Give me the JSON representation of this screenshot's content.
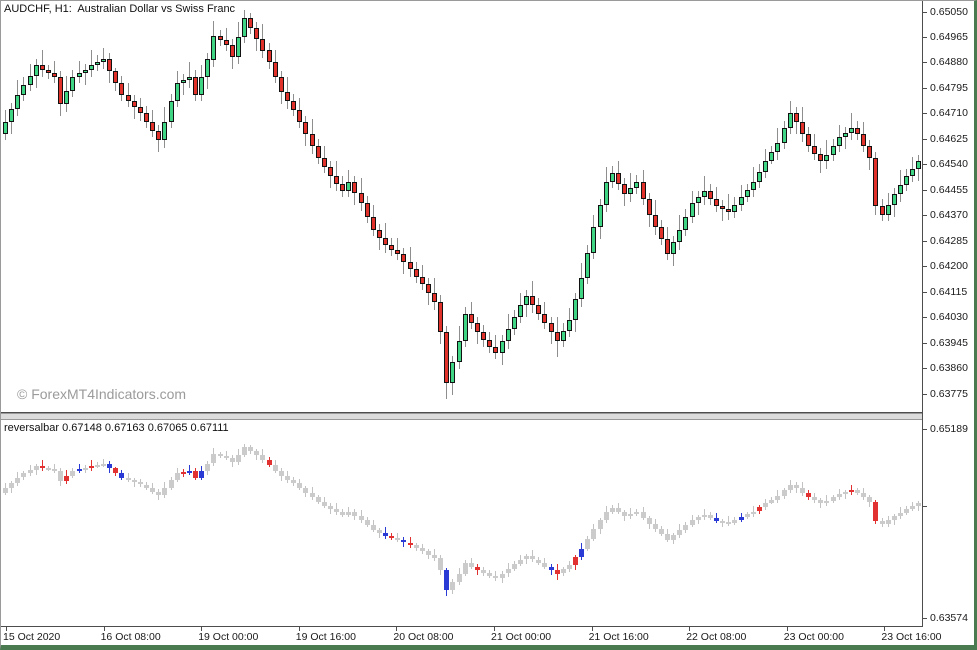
{
  "header": {
    "title": "AUDCHF, H1:  Australian Dollar vs Swiss Franc"
  },
  "watermark": {
    "text": "© ForexMT4Indicators.com"
  },
  "indicator": {
    "label": "reversalbar 0.67148 0.67163 0.67065 0.67111",
    "name": "reversalbar",
    "values": [
      "0.67148",
      "0.67163",
      "0.67065",
      "0.67111"
    ]
  },
  "price_axis_top": {
    "labels": [
      "0.65050",
      "0.64965",
      "0.64880",
      "0.64795",
      "0.64710",
      "0.64625",
      "0.64540",
      "0.64455",
      "0.64370",
      "0.64285",
      "0.64200",
      "0.64115",
      "0.64030",
      "0.63945",
      "0.63860",
      "0.63775"
    ]
  },
  "price_axis_bottom": {
    "labels": [
      "0.65189",
      "0.63574"
    ]
  },
  "time_axis": {
    "labels": [
      "15 Oct 2020",
      "16 Oct 08:00",
      "19 Oct 00:00",
      "19 Oct 16:00",
      "20 Oct 08:00",
      "21 Oct 00:00",
      "21 Oct 16:00",
      "22 Oct 08:00",
      "23 Oct 00:00",
      "23 Oct 16:00"
    ]
  },
  "chart_data": {
    "type": "candlestick",
    "symbol": "AUDCHF",
    "timeframe": "H1",
    "title": "AUDCHF, H1:  Australian Dollar vs Swiss Franc",
    "panels": [
      "price",
      "reversalbar indicator"
    ],
    "top_ylim": [
      0.63712,
      0.65083
    ],
    "bottom_ylim": [
      0.63462,
      0.65266
    ],
    "x_tick_labels": [
      "15 Oct 2020",
      "16 Oct 08:00",
      "19 Oct 00:00",
      "19 Oct 16:00",
      "20 Oct 08:00",
      "21 Oct 00:00",
      "21 Oct 16:00",
      "22 Oct 08:00",
      "23 Oct 00:00",
      "23 Oct 16:00"
    ],
    "colors": {
      "bull": "#3fd584",
      "bear": "#e0312a",
      "outline": "#111111",
      "wick": "#8e8e8e",
      "ind_gray": "#cbcbcb",
      "ind_wick": "#c2c2c2",
      "ind_blue": "#2a3ad4",
      "ind_red": "#e23131",
      "frame": "#4a7a4f"
    },
    "signals": {
      "blue": [
        12,
        17,
        19,
        30,
        32,
        62,
        65,
        72,
        89,
        94,
        116,
        120
      ],
      "red": [
        6,
        10,
        14,
        18,
        29,
        31,
        43,
        63,
        66,
        77,
        90,
        93,
        123,
        131,
        138,
        142
      ]
    },
    "bars": [
      [
        0.6464,
        0.6472,
        0.6462,
        0.6468
      ],
      [
        0.6468,
        0.64745,
        0.6464,
        0.64725
      ],
      [
        0.64725,
        0.6482,
        0.647,
        0.6477
      ],
      [
        0.6477,
        0.6483,
        0.6475,
        0.64805
      ],
      [
        0.64805,
        0.64875,
        0.64785,
        0.64835
      ],
      [
        0.64835,
        0.6489,
        0.64795,
        0.6487
      ],
      [
        0.6487,
        0.6492,
        0.6483,
        0.64855
      ],
      [
        0.64855,
        0.6487,
        0.64825,
        0.64845
      ],
      [
        0.64845,
        0.64885,
        0.6481,
        0.6483
      ],
      [
        0.6483,
        0.6485,
        0.647,
        0.6474
      ],
      [
        0.6474,
        0.64835,
        0.64715,
        0.64785
      ],
      [
        0.64785,
        0.64855,
        0.64765,
        0.6483
      ],
      [
        0.6483,
        0.64885,
        0.6481,
        0.64845
      ],
      [
        0.64845,
        0.64875,
        0.64805,
        0.64855
      ],
      [
        0.64855,
        0.6492,
        0.6483,
        0.6487
      ],
      [
        0.6487,
        0.64905,
        0.6485,
        0.6488
      ],
      [
        0.6488,
        0.6493,
        0.6486,
        0.6489
      ],
      [
        0.6489,
        0.6491,
        0.6481,
        0.6485
      ],
      [
        0.6485,
        0.6486,
        0.64785,
        0.6481
      ],
      [
        0.6481,
        0.64835,
        0.6475,
        0.6477
      ],
      [
        0.6477,
        0.6481,
        0.6473,
        0.6475
      ],
      [
        0.6475,
        0.6477,
        0.6469,
        0.6473
      ],
      [
        0.6473,
        0.6476,
        0.64685,
        0.6471
      ],
      [
        0.6471,
        0.64735,
        0.6466,
        0.6468
      ],
      [
        0.6468,
        0.6472,
        0.6463,
        0.6465
      ],
      [
        0.6465,
        0.6467,
        0.6458,
        0.6462
      ],
      [
        0.6462,
        0.6473,
        0.64595,
        0.6468
      ],
      [
        0.6468,
        0.64775,
        0.6466,
        0.6475
      ],
      [
        0.6475,
        0.6485,
        0.6473,
        0.6481
      ],
      [
        0.6481,
        0.6484,
        0.6477,
        0.6482
      ],
      [
        0.6482,
        0.6488,
        0.64795,
        0.6483
      ],
      [
        0.6483,
        0.64855,
        0.6475,
        0.6477
      ],
      [
        0.6477,
        0.6487,
        0.6475,
        0.6483
      ],
      [
        0.6483,
        0.6491,
        0.6479,
        0.6489
      ],
      [
        0.6489,
        0.6502,
        0.64865,
        0.6497
      ],
      [
        0.6497,
        0.6499,
        0.64935,
        0.64955
      ],
      [
        0.64955,
        0.64995,
        0.6492,
        0.6494
      ],
      [
        0.6494,
        0.6496,
        0.6486,
        0.649
      ],
      [
        0.649,
        0.65015,
        0.64875,
        0.64965
      ],
      [
        0.64965,
        0.65055,
        0.64945,
        0.6503
      ],
      [
        0.6503,
        0.65045,
        0.64975,
        0.64995
      ],
      [
        0.64995,
        0.65015,
        0.6492,
        0.6496
      ],
      [
        0.6496,
        0.6501,
        0.64895,
        0.6492
      ],
      [
        0.6492,
        0.64945,
        0.6486,
        0.6488
      ],
      [
        0.6488,
        0.6492,
        0.6481,
        0.6483
      ],
      [
        0.6483,
        0.6485,
        0.6474,
        0.6478
      ],
      [
        0.6478,
        0.6483,
        0.64725,
        0.6475
      ],
      [
        0.6475,
        0.64775,
        0.647,
        0.6472
      ],
      [
        0.6472,
        0.6476,
        0.6466,
        0.6468
      ],
      [
        0.6468,
        0.647,
        0.646,
        0.6464
      ],
      [
        0.6464,
        0.6469,
        0.64575,
        0.646
      ],
      [
        0.646,
        0.64625,
        0.6454,
        0.6456
      ],
      [
        0.6456,
        0.646,
        0.6451,
        0.6453
      ],
      [
        0.6453,
        0.6455,
        0.6446,
        0.645
      ],
      [
        0.645,
        0.6455,
        0.6445,
        0.64475
      ],
      [
        0.64475,
        0.645,
        0.6443,
        0.6445
      ],
      [
        0.6445,
        0.6452,
        0.6443,
        0.6448
      ],
      [
        0.6448,
        0.645,
        0.64405,
        0.64445
      ],
      [
        0.64445,
        0.64495,
        0.64385,
        0.6441
      ],
      [
        0.6441,
        0.64435,
        0.64345,
        0.64365
      ],
      [
        0.64365,
        0.64405,
        0.643,
        0.6432
      ],
      [
        0.6432,
        0.6434,
        0.64255,
        0.64295
      ],
      [
        0.64295,
        0.64345,
        0.64245,
        0.6427
      ],
      [
        0.6427,
        0.64295,
        0.64235,
        0.64255
      ],
      [
        0.64255,
        0.64295,
        0.6422,
        0.6424
      ],
      [
        0.6424,
        0.6426,
        0.64175,
        0.64215
      ],
      [
        0.64215,
        0.64265,
        0.64165,
        0.6419
      ],
      [
        0.6419,
        0.64215,
        0.64145,
        0.64165
      ],
      [
        0.64165,
        0.64205,
        0.6412,
        0.6414
      ],
      [
        0.6414,
        0.6416,
        0.6407,
        0.6411
      ],
      [
        0.6411,
        0.6416,
        0.64055,
        0.6408
      ],
      [
        0.6408,
        0.64105,
        0.6394,
        0.6398
      ],
      [
        0.6398,
        0.64,
        0.63755,
        0.6381
      ],
      [
        0.6381,
        0.639,
        0.6377,
        0.6388
      ],
      [
        0.6388,
        0.64,
        0.63855,
        0.6395
      ],
      [
        0.6395,
        0.64065,
        0.6393,
        0.6404
      ],
      [
        0.6404,
        0.6408,
        0.6399,
        0.6401
      ],
      [
        0.6401,
        0.6403,
        0.6394,
        0.6398
      ],
      [
        0.6398,
        0.64005,
        0.6393,
        0.63955
      ],
      [
        0.63955,
        0.6398,
        0.6391,
        0.6393
      ],
      [
        0.6393,
        0.6397,
        0.6389,
        0.6391
      ],
      [
        0.6391,
        0.6397,
        0.6387,
        0.6395
      ],
      [
        0.6395,
        0.6404,
        0.63925,
        0.6399
      ],
      [
        0.6399,
        0.64055,
        0.6397,
        0.6403
      ],
      [
        0.6403,
        0.6411,
        0.6401,
        0.6407
      ],
      [
        0.6407,
        0.6412,
        0.6403,
        0.641
      ],
      [
        0.641,
        0.6415,
        0.64045,
        0.6407
      ],
      [
        0.6407,
        0.64095,
        0.6402,
        0.6404
      ],
      [
        0.6404,
        0.6408,
        0.6399,
        0.6401
      ],
      [
        0.6401,
        0.6403,
        0.6394,
        0.6398
      ],
      [
        0.6398,
        0.6403,
        0.63895,
        0.6395
      ],
      [
        0.6395,
        0.6401,
        0.6393,
        0.63985
      ],
      [
        0.63985,
        0.6406,
        0.63965,
        0.6402
      ],
      [
        0.6402,
        0.6411,
        0.6398,
        0.6409
      ],
      [
        0.6409,
        0.6421,
        0.64065,
        0.6416
      ],
      [
        0.6416,
        0.6427,
        0.6414,
        0.64245
      ],
      [
        0.64245,
        0.6437,
        0.64225,
        0.6433
      ],
      [
        0.6433,
        0.64425,
        0.6429,
        0.64405
      ],
      [
        0.64405,
        0.6453,
        0.6438,
        0.6448
      ],
      [
        0.6448,
        0.64535,
        0.6446,
        0.6451
      ],
      [
        0.6451,
        0.6455,
        0.64455,
        0.64475
      ],
      [
        0.64475,
        0.64495,
        0.644,
        0.6444
      ],
      [
        0.6444,
        0.6451,
        0.64415,
        0.6446
      ],
      [
        0.6446,
        0.64505,
        0.6444,
        0.6448
      ],
      [
        0.6448,
        0.6452,
        0.64405,
        0.64425
      ],
      [
        0.64425,
        0.64445,
        0.6433,
        0.6437
      ],
      [
        0.6437,
        0.6442,
        0.64305,
        0.6433
      ],
      [
        0.6433,
        0.64355,
        0.6427,
        0.6429
      ],
      [
        0.6429,
        0.6433,
        0.6422,
        0.6424
      ],
      [
        0.6424,
        0.643,
        0.642,
        0.6428
      ],
      [
        0.6428,
        0.6437,
        0.64255,
        0.6432
      ],
      [
        0.6432,
        0.6439,
        0.643,
        0.64365
      ],
      [
        0.64365,
        0.6445,
        0.64345,
        0.6441
      ],
      [
        0.6441,
        0.6445,
        0.6437,
        0.6443
      ],
      [
        0.6443,
        0.645,
        0.64405,
        0.6445
      ],
      [
        0.6445,
        0.64475,
        0.64405,
        0.64425
      ],
      [
        0.64425,
        0.64465,
        0.6438,
        0.644
      ],
      [
        0.644,
        0.6442,
        0.6435,
        0.6439
      ],
      [
        0.6439,
        0.6444,
        0.64355,
        0.6438
      ],
      [
        0.6438,
        0.6443,
        0.6436,
        0.64405
      ],
      [
        0.64405,
        0.6447,
        0.64385,
        0.6443
      ],
      [
        0.6443,
        0.64475,
        0.64415,
        0.64455
      ],
      [
        0.64455,
        0.6453,
        0.6443,
        0.6448
      ],
      [
        0.6448,
        0.6454,
        0.6446,
        0.64515
      ],
      [
        0.64515,
        0.6459,
        0.64495,
        0.6455
      ],
      [
        0.6455,
        0.646,
        0.6454,
        0.6458
      ],
      [
        0.6458,
        0.6466,
        0.64555,
        0.6461
      ],
      [
        0.6461,
        0.64685,
        0.6459,
        0.6466
      ],
      [
        0.6466,
        0.6475,
        0.6464,
        0.6471
      ],
      [
        0.6471,
        0.6473,
        0.6464,
        0.6468
      ],
      [
        0.6468,
        0.6473,
        0.64615,
        0.6464
      ],
      [
        0.6464,
        0.64665,
        0.6458,
        0.646
      ],
      [
        0.646,
        0.6464,
        0.64555,
        0.64575
      ],
      [
        0.64575,
        0.64595,
        0.6451,
        0.6455
      ],
      [
        0.6455,
        0.6462,
        0.64525,
        0.6457
      ],
      [
        0.6457,
        0.64625,
        0.6455,
        0.646
      ],
      [
        0.646,
        0.6467,
        0.6458,
        0.6463
      ],
      [
        0.6463,
        0.64665,
        0.6459,
        0.64645
      ],
      [
        0.64645,
        0.6471,
        0.6462,
        0.6466
      ],
      [
        0.6466,
        0.64685,
        0.6462,
        0.6464
      ],
      [
        0.6464,
        0.6468,
        0.6458,
        0.646
      ],
      [
        0.646,
        0.6462,
        0.6452,
        0.6456
      ],
      [
        0.6456,
        0.6458,
        0.6437,
        0.644
      ],
      [
        0.644,
        0.64425,
        0.6435,
        0.6437
      ],
      [
        0.6437,
        0.64445,
        0.6435,
        0.64405
      ],
      [
        0.64405,
        0.6446,
        0.64365,
        0.6444
      ],
      [
        0.6444,
        0.6452,
        0.64415,
        0.6447
      ],
      [
        0.6447,
        0.64525,
        0.6445,
        0.645
      ],
      [
        0.645,
        0.64565,
        0.6448,
        0.64525
      ],
      [
        0.64525,
        0.6457,
        0.64485,
        0.6455
      ]
    ]
  }
}
